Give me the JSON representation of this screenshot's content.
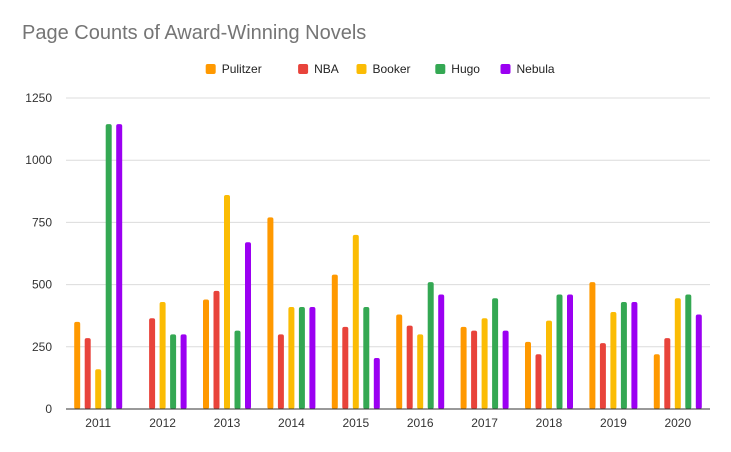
{
  "chart_data": {
    "type": "bar",
    "title": "Page Counts of Award-Winning Novels",
    "xlabel": "",
    "ylabel": "",
    "ylim": [
      0,
      1250
    ],
    "yticks": [
      0,
      250,
      500,
      750,
      1000,
      1250
    ],
    "grid": true,
    "legend_position": "top",
    "categories": [
      "2011",
      "2012",
      "2013",
      "2014",
      "2015",
      "2016",
      "2017",
      "2018",
      "2019",
      "2020"
    ],
    "series": [
      {
        "name": "Pulitzer",
        "color": "#ff9900",
        "values": [
          350,
          null,
          440,
          770,
          540,
          380,
          330,
          270,
          510,
          220
        ]
      },
      {
        "name": "NBA",
        "color": "#e8433b",
        "values": [
          285,
          365,
          475,
          300,
          330,
          335,
          315,
          220,
          265,
          285
        ]
      },
      {
        "name": "Booker",
        "color": "#fbbc04",
        "values": [
          160,
          430,
          860,
          410,
          700,
          300,
          365,
          355,
          390,
          445
        ]
      },
      {
        "name": "Hugo",
        "color": "#34a853",
        "values": [
          1145,
          300,
          315,
          410,
          410,
          510,
          445,
          460,
          430,
          460
        ]
      },
      {
        "name": "Nebula",
        "color": "#9b00f2",
        "values": [
          1145,
          300,
          670,
          410,
          205,
          460,
          315,
          460,
          430,
          380
        ]
      }
    ]
  }
}
